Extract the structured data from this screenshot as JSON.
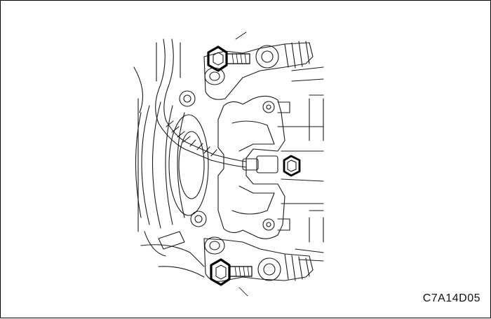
{
  "figure": {
    "code": "C7A14D05"
  },
  "colors": {
    "line": "#1a1a1a",
    "background": "#ffffff",
    "bolt_highlight": "#000000"
  }
}
